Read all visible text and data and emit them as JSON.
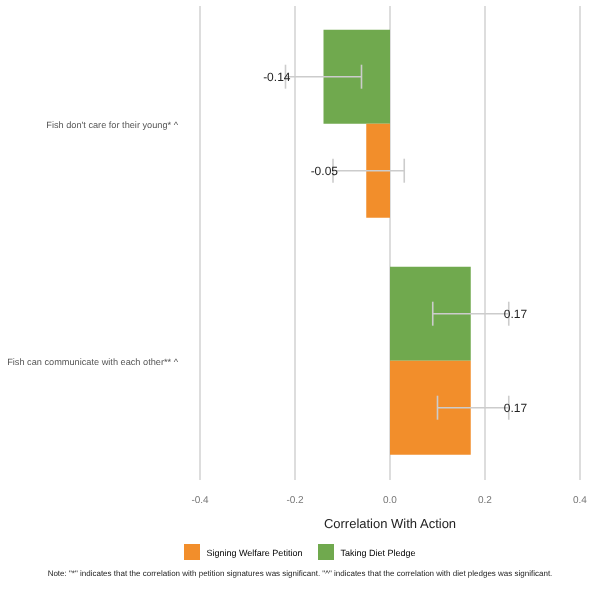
{
  "chart_data": {
    "type": "bar",
    "orientation": "horizontal",
    "xlabel": "Correlation With Action",
    "categories": [
      "Fish don't care for their young* ^",
      "Fish can communicate with each other** ^"
    ],
    "series": [
      {
        "name": "Signing Welfare Petition",
        "color": "#f28e2b",
        "values": [
          -0.05,
          0.17
        ],
        "errors": [
          [
            -0.12,
            0.03
          ],
          [
            0.1,
            0.25
          ]
        ]
      },
      {
        "name": "Taking Diet Pledge",
        "color": "#70a94e",
        "values": [
          -0.14,
          0.17
        ],
        "errors": [
          [
            -0.22,
            -0.06
          ],
          [
            0.09,
            0.25
          ]
        ]
      }
    ],
    "xlim": [
      -0.4,
      0.4
    ],
    "xticks": [
      {
        "value": -0.4,
        "label": "-0.4"
      },
      {
        "value": -0.2,
        "label": "-0.2"
      },
      {
        "value": 0,
        "label": "0.0"
      },
      {
        "value": 0.2,
        "label": "0.2"
      },
      {
        "value": 0.4,
        "label": "0.4"
      }
    ],
    "grid": "x",
    "legend": "bottom",
    "data_labels": true,
    "annotations": [
      "Note: \"*\" indicates that the correlation with petition signatures was significant. \"^\" indicates that the correlation with diet pledges was significant."
    ]
  }
}
